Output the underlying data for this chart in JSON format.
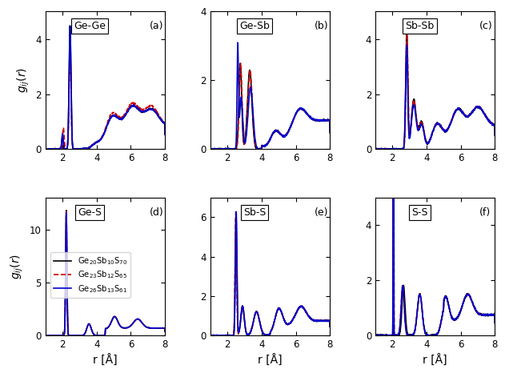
{
  "subplots": [
    {
      "label": "Ge-Ge",
      "tag": "(a)",
      "ylim": [
        0,
        5
      ],
      "yticks": [
        0,
        2,
        4
      ]
    },
    {
      "label": "Ge-Sb",
      "tag": "(b)",
      "ylim": [
        0,
        4
      ],
      "yticks": [
        0,
        2,
        4
      ]
    },
    {
      "label": "Sb-Sb",
      "tag": "(c)",
      "ylim": [
        0,
        5
      ],
      "yticks": [
        0,
        2,
        4
      ]
    },
    {
      "label": "Ge-S",
      "tag": "(d)",
      "ylim": [
        0,
        13
      ],
      "yticks": [
        0,
        5,
        10
      ]
    },
    {
      "label": "Sb-S",
      "tag": "(e)",
      "ylim": [
        0,
        7
      ],
      "yticks": [
        0,
        2,
        4,
        6
      ]
    },
    {
      "label": "S-S",
      "tag": "(f)",
      "ylim": [
        0,
        5
      ],
      "yticks": [
        0,
        2,
        4
      ]
    }
  ],
  "xlim": [
    1,
    8
  ],
  "xticks": [
    2,
    4,
    6,
    8
  ],
  "xlabel": "r [Å]",
  "ylabel": "$g_{ij}(r)$",
  "colors": [
    "black",
    "#cc0000",
    "#0000cc"
  ],
  "linestyles": [
    "-",
    "--",
    "-"
  ],
  "linewidths": [
    1.2,
    1.2,
    1.2
  ],
  "legend_labels": [
    "Ge$_{20}$Sb$_{10}$S$_{70}$",
    "Ge$_{23}$Sb$_{12}$S$_{65}$",
    "Ge$_{26}$Sb$_{13}$S$_{61}$"
  ]
}
